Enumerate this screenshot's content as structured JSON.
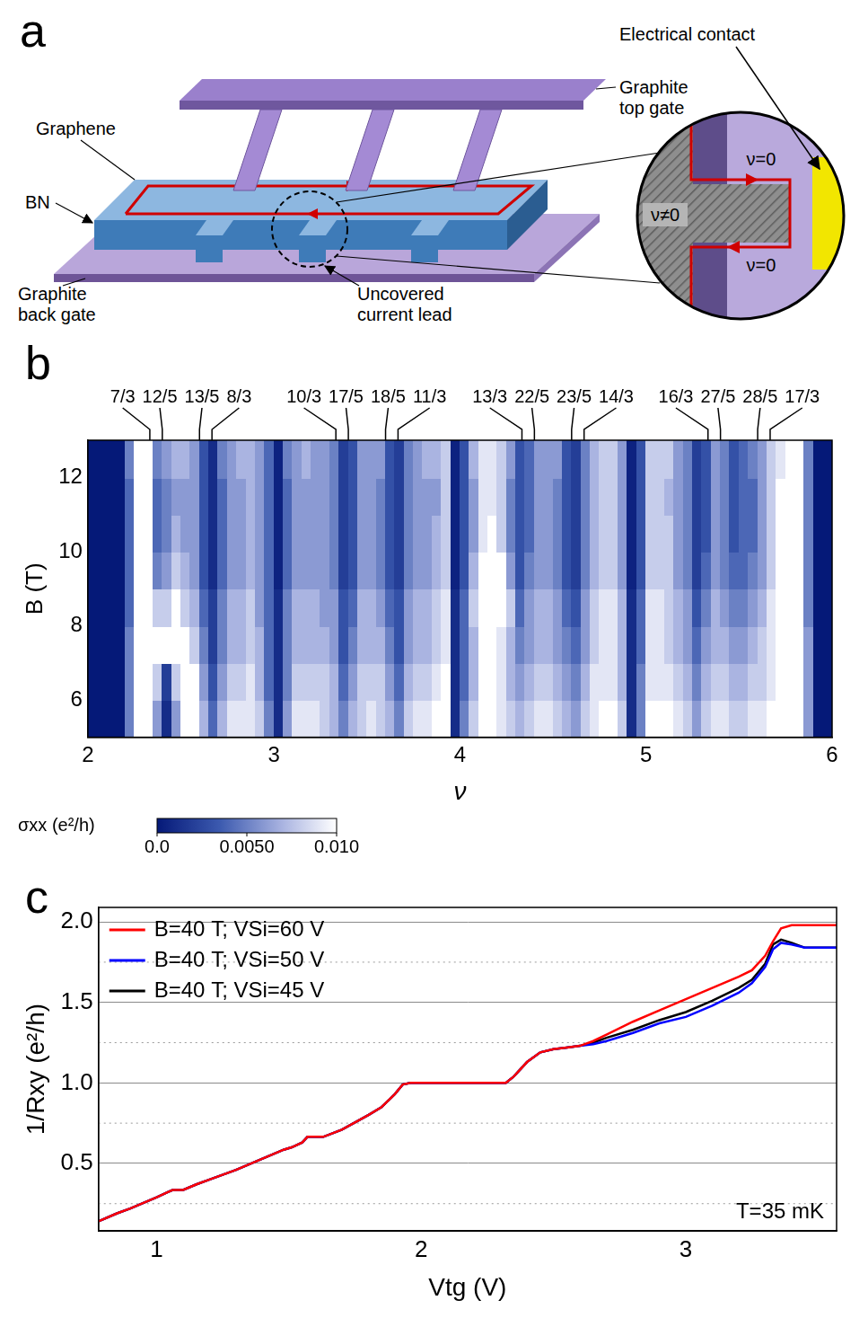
{
  "diagram": {
    "panel": "a",
    "labels": {
      "graphene": "Graphene",
      "bn": "BN",
      "back_gate": "Graphite back gate",
      "top_gate": "Graphite top gate",
      "current_lead": "Uncovered current lead",
      "contact": "Electrical contact"
    },
    "inset": {
      "upper": "ν=0",
      "lower": "ν=0",
      "bulk": "ν≠0"
    }
  },
  "chart_data": [
    {
      "panel": "b",
      "type": "heatmap",
      "xlabel": "ν",
      "ylabel": "B (T)",
      "xlim": [
        2,
        6
      ],
      "ylim": [
        5,
        13
      ],
      "xticks": [
        2,
        3,
        4,
        5,
        6
      ],
      "yticks": [
        6,
        8,
        10,
        12
      ],
      "grid": false,
      "x_bins": [
        2,
        2.05,
        2.1,
        2.15,
        2.2,
        2.25,
        2.3,
        2.35,
        2.4,
        2.45,
        2.5,
        2.55,
        2.6,
        2.65,
        2.7,
        2.75,
        2.8,
        2.85,
        2.9,
        2.95,
        3,
        3.05,
        3.1,
        3.15,
        3.2,
        3.25,
        3.3,
        3.35,
        3.4,
        3.45,
        3.5,
        3.55,
        3.6,
        3.65,
        3.7,
        3.75,
        3.8,
        3.85,
        3.9,
        3.95,
        4,
        4.05,
        4.1,
        4.15,
        4.2,
        4.25,
        4.3,
        4.35,
        4.4,
        4.45,
        4.5,
        4.55,
        4.6,
        4.65,
        4.7,
        4.75,
        4.8,
        4.85,
        4.9,
        4.95,
        5,
        5.05,
        5.1,
        5.15,
        5.2,
        5.25,
        5.3,
        5.35,
        5.4,
        5.45,
        5.5,
        5.55,
        5.6,
        5.65,
        5.7,
        5.75,
        5.8,
        5.85,
        5.9,
        5.95,
        6
      ],
      "y_bins": [
        5,
        6,
        7,
        8,
        9,
        10,
        11,
        12,
        13
      ],
      "cells": [
        [
          0,
          0,
          0,
          0,
          0.005,
          0.012,
          0.012,
          0.006,
          0.001,
          0.006,
          0.012,
          0.011,
          0.007,
          0.004,
          0.007,
          0.009,
          0.009,
          0.009,
          0.008,
          0.005,
          0.001,
          0.006,
          0.009,
          0.009,
          0.009,
          0.008,
          0.007,
          0.005,
          0.007,
          0.008,
          0.009,
          0.008,
          0.007,
          0.005,
          0.008,
          0.009,
          0.009,
          0.01,
          0.01,
          0.001,
          0.005,
          0.008,
          0.01,
          0.01,
          0.009,
          0.008,
          0.007,
          0.008,
          0.009,
          0.009,
          0.008,
          0.007,
          0.006,
          0.008,
          0.009,
          0.01,
          0.01,
          0.008,
          0.001,
          0.005,
          0.01,
          0.01,
          0.01,
          0.009,
          0.008,
          0.006,
          0.008,
          0.009,
          0.009,
          0.008,
          0.008,
          0.009,
          0.009,
          0.01,
          0.011,
          0.012,
          0.012,
          0.006,
          0,
          0
        ],
        [
          0,
          0,
          0,
          0,
          0.005,
          0.012,
          0.012,
          0.008,
          0.002,
          0.008,
          0.012,
          0.01,
          0.006,
          0.003,
          0.006,
          0.008,
          0.008,
          0.009,
          0.007,
          0.004,
          0.001,
          0.005,
          0.008,
          0.008,
          0.008,
          0.008,
          0.007,
          0.004,
          0.006,
          0.008,
          0.008,
          0.008,
          0.006,
          0.004,
          0.007,
          0.008,
          0.008,
          0.009,
          0.01,
          0.001,
          0.004,
          0.007,
          0.01,
          0.01,
          0.009,
          0.007,
          0.006,
          0.007,
          0.008,
          0.008,
          0.007,
          0.006,
          0.005,
          0.007,
          0.009,
          0.009,
          0.009,
          0.007,
          0.001,
          0.005,
          0.009,
          0.009,
          0.009,
          0.008,
          0.007,
          0.005,
          0.007,
          0.008,
          0.008,
          0.007,
          0.007,
          0.008,
          0.008,
          0.009,
          0.011,
          0.012,
          0.012,
          0.006,
          0,
          0
        ],
        [
          0,
          0,
          0,
          0,
          0.005,
          0.012,
          0.012,
          0.011,
          0.01,
          0.011,
          0.01,
          0.008,
          0.005,
          0.002,
          0.005,
          0.007,
          0.007,
          0.008,
          0.007,
          0.004,
          0.001,
          0.005,
          0.007,
          0.007,
          0.007,
          0.007,
          0.006,
          0.003,
          0.005,
          0.007,
          0.007,
          0.007,
          0.005,
          0.003,
          0.006,
          0.007,
          0.007,
          0.008,
          0.009,
          0.001,
          0.004,
          0.007,
          0.01,
          0.01,
          0.009,
          0.007,
          0.005,
          0.006,
          0.007,
          0.007,
          0.006,
          0.005,
          0.004,
          0.006,
          0.008,
          0.009,
          0.009,
          0.007,
          0.001,
          0.004,
          0.009,
          0.009,
          0.008,
          0.007,
          0.006,
          0.004,
          0.006,
          0.007,
          0.007,
          0.006,
          0.006,
          0.007,
          0.008,
          0.009,
          0.011,
          0.012,
          0.012,
          0.006,
          0,
          0
        ],
        [
          0,
          0,
          0,
          0,
          0.004,
          0.012,
          0.012,
          0.008,
          0.008,
          0.01,
          0.008,
          0.007,
          0.004,
          0.002,
          0.005,
          0.007,
          0.007,
          0.008,
          0.006,
          0.004,
          0.001,
          0.005,
          0.007,
          0.007,
          0.007,
          0.006,
          0.006,
          0.003,
          0.004,
          0.007,
          0.007,
          0.006,
          0.004,
          0.003,
          0.006,
          0.007,
          0.007,
          0.008,
          0.009,
          0.001,
          0.004,
          0.008,
          0.011,
          0.012,
          0.012,
          0.008,
          0.004,
          0.006,
          0.007,
          0.007,
          0.006,
          0.004,
          0.003,
          0.006,
          0.008,
          0.009,
          0.009,
          0.007,
          0.001,
          0.004,
          0.009,
          0.009,
          0.008,
          0.007,
          0.006,
          0.003,
          0.005,
          0.007,
          0.006,
          0.005,
          0.005,
          0.006,
          0.007,
          0.009,
          0.01,
          0.012,
          0.012,
          0.005,
          0,
          0
        ],
        [
          0,
          0,
          0,
          0,
          0.004,
          0.012,
          0.012,
          0.005,
          0.006,
          0.008,
          0.007,
          0.006,
          0.003,
          0.001,
          0.004,
          0.006,
          0.006,
          0.007,
          0.006,
          0.004,
          0.0005,
          0.004,
          0.006,
          0.006,
          0.006,
          0.006,
          0.005,
          0.002,
          0.003,
          0.006,
          0.006,
          0.005,
          0.003,
          0.002,
          0.005,
          0.006,
          0.006,
          0.007,
          0.008,
          0.0005,
          0.003,
          0.007,
          0.01,
          0.011,
          0.01,
          0.006,
          0.003,
          0.005,
          0.006,
          0.006,
          0.005,
          0.003,
          0.002,
          0.005,
          0.007,
          0.008,
          0.008,
          0.006,
          0.0005,
          0.003,
          0.008,
          0.008,
          0.008,
          0.006,
          0.005,
          0.002,
          0.004,
          0.006,
          0.005,
          0.004,
          0.004,
          0.005,
          0.006,
          0.008,
          0.01,
          0.012,
          0.012,
          0.005,
          0,
          0
        ],
        [
          0,
          0,
          0,
          0,
          0.004,
          0.012,
          0.012,
          0.004,
          0.005,
          0.007,
          0.006,
          0.006,
          0.003,
          0.001,
          0.004,
          0.006,
          0.006,
          0.007,
          0.006,
          0.004,
          0.0005,
          0.004,
          0.006,
          0.006,
          0.006,
          0.006,
          0.005,
          0.002,
          0.003,
          0.006,
          0.006,
          0.005,
          0.003,
          0.002,
          0.005,
          0.006,
          0.006,
          0.007,
          0.008,
          0.0005,
          0.003,
          0.006,
          0.009,
          0.01,
          0.008,
          0.005,
          0.003,
          0.004,
          0.006,
          0.006,
          0.005,
          0.003,
          0.002,
          0.005,
          0.007,
          0.008,
          0.008,
          0.006,
          0.0005,
          0.003,
          0.008,
          0.008,
          0.008,
          0.006,
          0.005,
          0.002,
          0.003,
          0.006,
          0.005,
          0.003,
          0.004,
          0.004,
          0.006,
          0.008,
          0.01,
          0.012,
          0.012,
          0.005,
          0,
          0
        ],
        [
          0,
          0,
          0,
          0,
          0.004,
          0.012,
          0.012,
          0.004,
          0.005,
          0.006,
          0.006,
          0.006,
          0.003,
          0.001,
          0.004,
          0.006,
          0.006,
          0.007,
          0.006,
          0.004,
          0.0005,
          0.004,
          0.006,
          0.006,
          0.006,
          0.006,
          0.005,
          0.002,
          0.003,
          0.006,
          0.006,
          0.005,
          0.003,
          0.002,
          0.005,
          0.006,
          0.006,
          0.006,
          0.008,
          0.0005,
          0.003,
          0.006,
          0.009,
          0.009,
          0.008,
          0.005,
          0.003,
          0.004,
          0.006,
          0.006,
          0.005,
          0.003,
          0.002,
          0.005,
          0.007,
          0.008,
          0.008,
          0.006,
          0.0005,
          0.003,
          0.008,
          0.008,
          0.007,
          0.006,
          0.005,
          0.002,
          0.003,
          0.006,
          0.005,
          0.003,
          0.004,
          0.004,
          0.006,
          0.008,
          0.01,
          0.012,
          0.012,
          0.005,
          0,
          0
        ],
        [
          0,
          0,
          0,
          0,
          0.005,
          0.012,
          0.012,
          0.005,
          0.006,
          0.007,
          0.007,
          0.006,
          0.003,
          0.001,
          0.005,
          0.006,
          0.007,
          0.007,
          0.006,
          0.004,
          0.0005,
          0.005,
          0.006,
          0.007,
          0.006,
          0.006,
          0.005,
          0.002,
          0.003,
          0.006,
          0.006,
          0.006,
          0.003,
          0.002,
          0.005,
          0.006,
          0.007,
          0.007,
          0.008,
          0.0005,
          0.003,
          0.007,
          0.009,
          0.009,
          0.008,
          0.006,
          0.003,
          0.004,
          0.006,
          0.006,
          0.006,
          0.003,
          0.002,
          0.005,
          0.007,
          0.008,
          0.008,
          0.006,
          0.0005,
          0.003,
          0.008,
          0.008,
          0.008,
          0.006,
          0.005,
          0.002,
          0.003,
          0.006,
          0.005,
          0.003,
          0.004,
          0.005,
          0.006,
          0.008,
          0.009,
          0.011,
          0.012,
          0.005,
          0,
          0
        ]
      ],
      "colorbar": {
        "label": "σxx (e²/h)",
        "range": [
          0,
          0.01
        ],
        "ticks": [
          {
            "value": 0,
            "label": "0.0"
          },
          {
            "value": 0.005,
            "label": "0.0050"
          },
          {
            "value": 0.01,
            "label": "0.010"
          }
        ]
      },
      "annotations": [
        {
          "text": "7/3",
          "x": 2.333
        },
        {
          "text": "12/5",
          "x": 2.4
        },
        {
          "text": "13/5",
          "x": 2.6
        },
        {
          "text": "8/3",
          "x": 2.667
        },
        {
          "text": "10/3",
          "x": 3.333
        },
        {
          "text": "17/5",
          "x": 3.4
        },
        {
          "text": "18/5",
          "x": 3.6
        },
        {
          "text": "11/3",
          "x": 3.667
        },
        {
          "text": "13/3",
          "x": 4.333
        },
        {
          "text": "22/5",
          "x": 4.4
        },
        {
          "text": "23/5",
          "x": 4.6
        },
        {
          "text": "14/3",
          "x": 4.667
        },
        {
          "text": "16/3",
          "x": 5.333
        },
        {
          "text": "27/5",
          "x": 5.4
        },
        {
          "text": "28/5",
          "x": 5.6
        },
        {
          "text": "17/3",
          "x": 5.667
        }
      ]
    },
    {
      "panel": "c",
      "type": "line",
      "xlabel": "Vtg (V)",
      "ylabel": "1/Rxy (e²/h)",
      "xlim": [
        0.78,
        3.57
      ],
      "ylim": [
        0.08,
        2.09
      ],
      "xticks": [
        1,
        2,
        3
      ],
      "yticks": [
        0.5,
        {
          "value": 1,
          "label": "1.0"
        },
        1.5,
        {
          "value": 2,
          "label": "2.0"
        }
      ],
      "grid": true,
      "legend": "upper left",
      "annotations": [
        "T=35 mK"
      ],
      "x": [
        0.78,
        0.85,
        0.9,
        1.0,
        1.04,
        1.06,
        1.1,
        1.15,
        1.2,
        1.3,
        1.4,
        1.48,
        1.51,
        1.55,
        1.57,
        1.63,
        1.7,
        1.8,
        1.85,
        1.9,
        1.93,
        1.96,
        2.0,
        2.1,
        2.2,
        2.3,
        2.32,
        2.35,
        2.4,
        2.45,
        2.5,
        2.55,
        2.6,
        2.65,
        2.7,
        2.8,
        2.9,
        3.0,
        3.1,
        3.2,
        3.25,
        3.3,
        3.33,
        3.36,
        3.4,
        3.45,
        3.5,
        3.57
      ],
      "series": [
        {
          "name": "B=40 T; VSi=60 V",
          "color": "#ff0000",
          "values": [
            0.14,
            0.19,
            0.22,
            0.29,
            0.32,
            0.335,
            0.335,
            0.37,
            0.4,
            0.46,
            0.53,
            0.585,
            0.6,
            0.63,
            0.665,
            0.665,
            0.71,
            0.8,
            0.85,
            0.93,
            0.99,
            1.0,
            1.0,
            1.0,
            1.0,
            1.0,
            1.0,
            1.04,
            1.13,
            1.19,
            1.21,
            1.22,
            1.23,
            1.26,
            1.3,
            1.38,
            1.45,
            1.52,
            1.59,
            1.66,
            1.7,
            1.79,
            1.88,
            1.96,
            1.98,
            1.98,
            1.98,
            1.98
          ]
        },
        {
          "name": "B=40 T; VSi=50 V",
          "color": "#0000ff",
          "values": [
            0.14,
            0.19,
            0.22,
            0.29,
            0.32,
            0.335,
            0.335,
            0.37,
            0.4,
            0.46,
            0.53,
            0.585,
            0.6,
            0.63,
            0.665,
            0.665,
            0.71,
            0.8,
            0.85,
            0.93,
            0.99,
            1.0,
            1.0,
            1.0,
            1.0,
            1.0,
            1.0,
            1.04,
            1.13,
            1.19,
            1.21,
            1.22,
            1.23,
            1.24,
            1.26,
            1.31,
            1.37,
            1.41,
            1.48,
            1.56,
            1.62,
            1.72,
            1.83,
            1.87,
            1.86,
            1.84,
            1.84,
            1.84
          ]
        },
        {
          "name": "B=40 T; VSi=45 V",
          "color": "#000000",
          "values": [
            0.14,
            0.19,
            0.22,
            0.29,
            0.32,
            0.335,
            0.335,
            0.37,
            0.4,
            0.46,
            0.53,
            0.585,
            0.6,
            0.63,
            0.665,
            0.665,
            0.71,
            0.8,
            0.85,
            0.93,
            0.99,
            1.0,
            1.0,
            1.0,
            1.0,
            1.0,
            1.0,
            1.04,
            1.13,
            1.19,
            1.21,
            1.22,
            1.23,
            1.25,
            1.28,
            1.33,
            1.39,
            1.44,
            1.51,
            1.59,
            1.64,
            1.74,
            1.86,
            1.89,
            1.87,
            1.84,
            1.84,
            1.84
          ]
        }
      ]
    }
  ]
}
